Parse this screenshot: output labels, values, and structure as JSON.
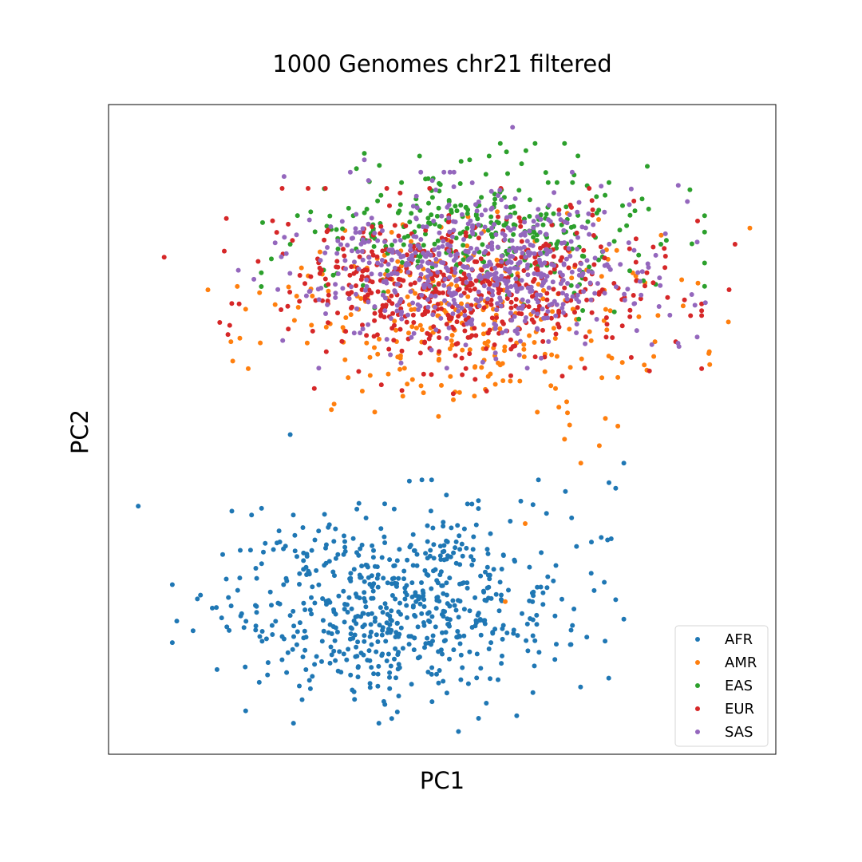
{
  "chart_data": {
    "type": "scatter",
    "title": "1000 Genomes chr21 filtered",
    "xlabel": "PC1",
    "ylabel": "PC2",
    "xlim": [
      -0.045,
      0.045
    ],
    "ylim": [
      -0.05,
      0.05
    ],
    "grid": false,
    "ticks_shown": false,
    "legend_position": "lower-right",
    "marker_size": 3,
    "series": [
      {
        "name": "AFR",
        "color": "#1f77b4",
        "points": {
          "count": 660,
          "center": [
            -0.0065,
            -0.0265
          ],
          "spread": [
            0.0115,
            0.0072
          ]
        },
        "outliers": [
          [
            -0.041,
            -0.0118
          ],
          [
            -0.0358,
            -0.0295
          ],
          [
            -0.031,
            -0.0275
          ],
          [
            -0.0205,
            -0.0008
          ],
          [
            -0.0068,
            -0.0445
          ],
          [
            0.0022,
            -0.0465
          ],
          [
            0.0245,
            -0.0052
          ],
          [
            0.0225,
            -0.0082
          ],
          [
            0.0245,
            -0.0292
          ],
          [
            0.0205,
            -0.0248
          ]
        ]
      },
      {
        "name": "AMR",
        "color": "#ff7f0e",
        "points": {
          "count": 280,
          "center": [
            0.0035,
            0.0165
          ],
          "spread": [
            0.0135,
            0.0068
          ]
        },
        "outliers": [
          [
            0.0415,
            0.031
          ],
          [
            0.0345,
            0.0225
          ],
          [
            0.0325,
            0.019
          ],
          [
            0.0287,
            0.0135
          ],
          [
            0.0237,
            0.0005
          ],
          [
            0.0187,
            -0.0052
          ],
          [
            0.0212,
            -0.0025
          ],
          [
            0.0165,
            -0.0015
          ],
          [
            0.0112,
            -0.0145
          ],
          [
            0.0085,
            -0.0265
          ],
          [
            -0.0285,
            0.0135
          ],
          [
            -0.0265,
            0.0185
          ],
          [
            -0.0005,
            0.002
          ],
          [
            0.0082,
            0.0075
          ],
          [
            0.0237,
            0.008
          ]
        ]
      },
      {
        "name": "EAS",
        "color": "#2ca02c",
        "points": {
          "count": 300,
          "center": [
            0.0055,
            0.0305
          ],
          "spread": [
            0.0115,
            0.0052
          ]
        },
        "outliers": [
          [
            -0.0105,
            0.0425
          ],
          [
            -0.0205,
            0.0285
          ],
          [
            0.0295,
            0.0285
          ],
          [
            0.0225,
            0.038
          ],
          [
            0.0037,
            0.0415
          ]
        ]
      },
      {
        "name": "EUR",
        "color": "#d62728",
        "points": {
          "count": 540,
          "center": [
            0.0025,
            0.0215
          ],
          "spread": [
            0.0125,
            0.006
          ]
        },
        "outliers": [
          [
            -0.0375,
            0.0265
          ],
          [
            0.0395,
            0.0285
          ],
          [
            0.0387,
            0.0215
          ],
          [
            0.0335,
            0.0175
          ],
          [
            0.0315,
            0.0135
          ],
          [
            0.0015,
            0.0055
          ],
          [
            -0.0025,
            0.0085
          ]
        ]
      },
      {
        "name": "SAS",
        "color": "#9467bd",
        "points": {
          "count": 600,
          "center": [
            0.0045,
            0.0245
          ],
          "spread": [
            0.0115,
            0.0058
          ]
        },
        "outliers": [
          [
            0.0095,
            0.0465
          ],
          [
            -0.0105,
            0.0415
          ],
          [
            0.0355,
            0.0195
          ],
          [
            0.0255,
            0.037
          ],
          [
            -0.0275,
            0.0245
          ]
        ]
      }
    ]
  }
}
